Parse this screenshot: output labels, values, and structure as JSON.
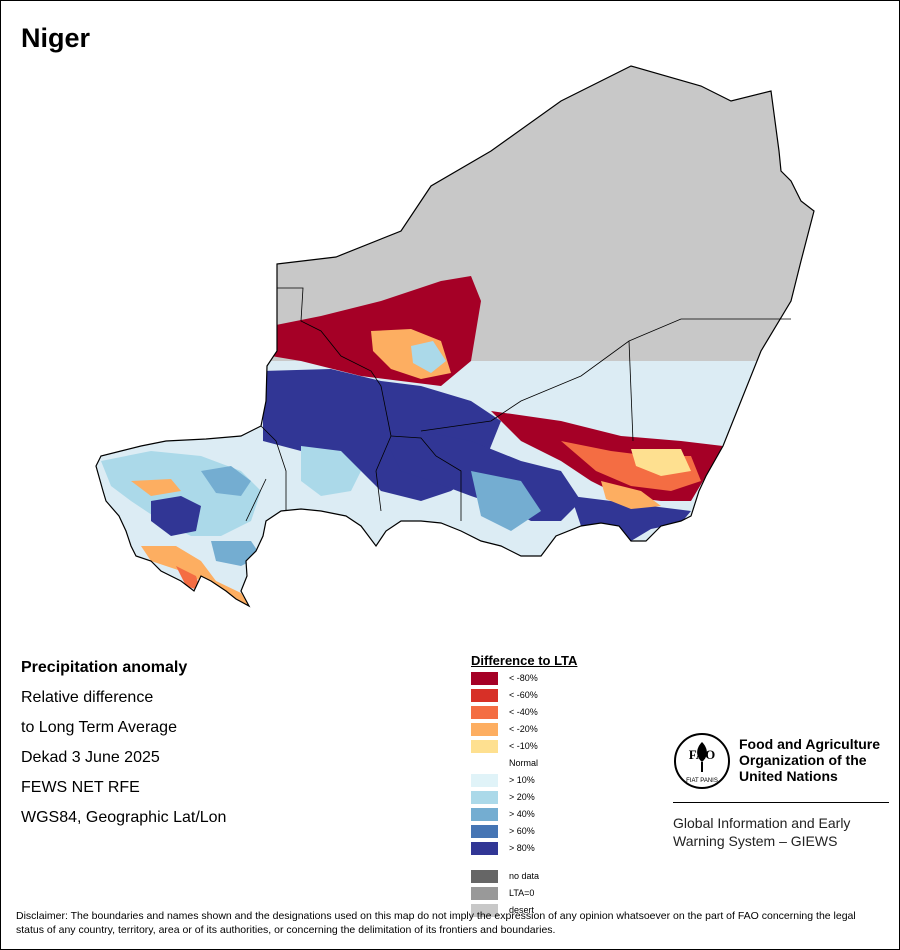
{
  "map": {
    "title": "Niger"
  },
  "info": {
    "lines": [
      "Precipitation anomaly",
      "Relative difference",
      "to Long Term Average",
      "Dekad 3 June 2025",
      "FEWS NET RFE",
      "WGS84, Geographic Lat/Lon"
    ]
  },
  "legend": {
    "title": "Difference to LTA",
    "items": [
      {
        "label": "< -80%",
        "color": "#a50026"
      },
      {
        "label": "< -60%",
        "color": "#d73027"
      },
      {
        "label": "< -40%",
        "color": "#f46d43"
      },
      {
        "label": "< -20%",
        "color": "#fdae61"
      },
      {
        "label": "< -10%",
        "color": "#fee090"
      },
      {
        "label": "Normal",
        "color": "#ffffff"
      },
      {
        "label": "> 10%",
        "color": "#e0f3f8"
      },
      {
        "label": "> 20%",
        "color": "#abd9e9"
      },
      {
        "label": "> 40%",
        "color": "#74add1"
      },
      {
        "label": "> 60%",
        "color": "#4575b4"
      },
      {
        "label": "> 80%",
        "color": "#313695"
      },
      {
        "label": "no data",
        "color": "#666666"
      },
      {
        "label": "LTA=0",
        "color": "#999999"
      },
      {
        "label": "desert",
        "color": "#c8c8c8"
      }
    ]
  },
  "fao": {
    "name_lines": [
      "Food and Agriculture",
      "Organization of the",
      "United Nations"
    ],
    "logo_text": "FAO",
    "logo_motto": "FIAT PANIS",
    "giews_lines": [
      "Global Information and Early",
      "Warning System – GIEWS"
    ]
  },
  "disclaimer": "Disclaimer: The boundaries and names shown and the designations used on this map do not imply the expression of any opinion whatsoever on the part of FAO concerning the legal status of any country, territory, area or of its authorities, or concerning the delimitation of its frontiers and boundaries."
}
